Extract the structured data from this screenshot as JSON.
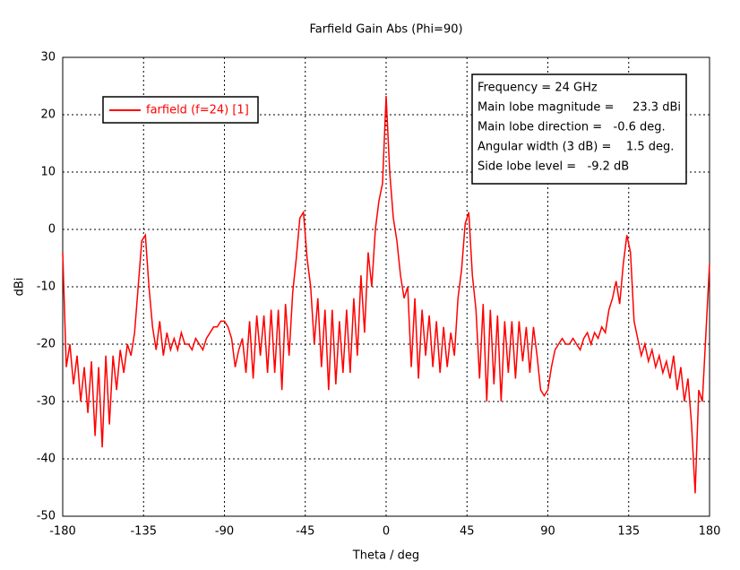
{
  "chart_data": {
    "type": "line",
    "title": "Farfield Gain Abs (Phi=90)",
    "x_label": "Theta / deg",
    "y_label": "dBi",
    "xlim": [
      -180,
      180
    ],
    "ylim": [
      -50,
      30
    ],
    "xticks": [
      -180,
      -135,
      -90,
      -45,
      0,
      45,
      90,
      135,
      180
    ],
    "yticks": [
      -50,
      -40,
      -30,
      -20,
      -10,
      0,
      10,
      20,
      30
    ],
    "grid": true,
    "legend": "upper-left",
    "x": [
      -180,
      -178,
      -176,
      -174,
      -172,
      -170,
      -168,
      -166,
      -164,
      -162,
      -160,
      -158,
      -156,
      -154,
      -152,
      -150,
      -148,
      -146,
      -144,
      -142,
      -140,
      -138,
      -136,
      -134,
      -132,
      -130,
      -128,
      -126,
      -124,
      -122,
      -120,
      -118,
      -116,
      -114,
      -112,
      -110,
      -108,
      -106,
      -104,
      -102,
      -100,
      -98,
      -96,
      -94,
      -92,
      -90,
      -88,
      -86,
      -84,
      -82,
      -80,
      -78,
      -76,
      -74,
      -72,
      -70,
      -68,
      -66,
      -64,
      -62,
      -60,
      -58,
      -56,
      -54,
      -52,
      -50,
      -48,
      -46,
      -44,
      -42,
      -40,
      -38,
      -36,
      -34,
      -32,
      -30,
      -28,
      -26,
      -24,
      -22,
      -20,
      -18,
      -16,
      -14,
      -12,
      -10,
      -8,
      -6,
      -4,
      -2,
      0,
      2,
      4,
      6,
      8,
      10,
      12,
      14,
      16,
      18,
      20,
      22,
      24,
      26,
      28,
      30,
      32,
      34,
      36,
      38,
      40,
      42,
      44,
      46,
      48,
      50,
      52,
      54,
      56,
      58,
      60,
      62,
      64,
      66,
      68,
      70,
      72,
      74,
      76,
      78,
      80,
      82,
      84,
      86,
      88,
      90,
      92,
      94,
      96,
      98,
      100,
      102,
      104,
      106,
      108,
      110,
      112,
      114,
      116,
      118,
      120,
      122,
      124,
      126,
      128,
      130,
      132,
      134,
      136,
      138,
      140,
      142,
      144,
      146,
      148,
      150,
      152,
      154,
      156,
      158,
      160,
      162,
      164,
      166,
      168,
      170,
      172,
      174,
      176,
      178,
      180
    ],
    "series": [
      {
        "name": "farfield (f=24) [1]",
        "color": "#ff0000",
        "values": [
          -4,
          -24,
          -20,
          -27,
          -22,
          -30,
          -24,
          -32,
          -23,
          -36,
          -24,
          -38,
          -22,
          -34,
          -22,
          -28,
          -21,
          -25,
          -20,
          -22,
          -18,
          -10,
          -2,
          -1,
          -10,
          -17,
          -21,
          -16,
          -22,
          -18,
          -21,
          -19,
          -21,
          -18,
          -20,
          -20,
          -21,
          -19,
          -20,
          -21,
          -19,
          -18,
          -17,
          -17,
          -16,
          -16,
          -17,
          -19,
          -24,
          -21,
          -19,
          -25,
          -16,
          -26,
          -15,
          -22,
          -15,
          -25,
          -14,
          -25,
          -14,
          -28,
          -13,
          -22,
          -11,
          -5,
          2,
          3,
          -5,
          -10,
          -20,
          -12,
          -24,
          -14,
          -28,
          -14,
          -27,
          -16,
          -25,
          -14,
          -25,
          -12,
          -22,
          -8,
          -18,
          -4,
          -10,
          0,
          5,
          8,
          23.3,
          10,
          2,
          -2,
          -8,
          -12,
          -10,
          -24,
          -12,
          -26,
          -14,
          -22,
          -15,
          -24,
          -16,
          -25,
          -17,
          -24,
          -18,
          -22,
          -12,
          -7,
          1,
          3,
          -8,
          -14,
          -26,
          -13,
          -30,
          -14,
          -27,
          -15,
          -30,
          -16,
          -25,
          -16,
          -26,
          -16,
          -23,
          -17,
          -25,
          -17,
          -22,
          -28,
          -29,
          -28,
          -24,
          -21,
          -20,
          -19,
          -20,
          -20,
          -19,
          -20,
          -21,
          -19,
          -18,
          -20,
          -18,
          -19,
          -17,
          -18,
          -14,
          -12,
          -9,
          -13,
          -6,
          -1,
          -4,
          -16,
          -19,
          -22,
          -20,
          -23,
          -21,
          -24,
          -22,
          -25,
          -23,
          -26,
          -22,
          -28,
          -24,
          -30,
          -26,
          -34,
          -46,
          -28,
          -30,
          -18,
          -6
        ]
      }
    ],
    "annotations": [
      "Frequency = 24 GHz",
      "Main lobe magnitude =     23.3 dBi",
      "Main lobe direction =   -0.6 deg.",
      "Angular width (3 dB) =    1.5 deg.",
      "Side lobe level =   -9.2 dB"
    ]
  }
}
